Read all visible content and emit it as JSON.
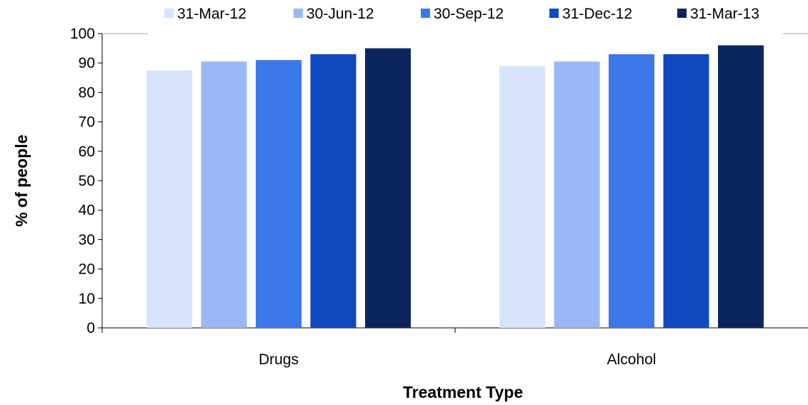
{
  "chart_data": {
    "type": "bar",
    "xlabel": "Treatment Type",
    "ylabel": "% of people",
    "ylim": [
      0,
      100
    ],
    "yticks": [
      "0",
      "10",
      "20",
      "30",
      "40",
      "50",
      "60",
      "70",
      "80",
      "90",
      "100"
    ],
    "categories": [
      "Drugs",
      "Alcohol"
    ],
    "series": [
      {
        "name": "31-Mar-12",
        "color": "#d6e3fb",
        "values": [
          87.5,
          89
        ]
      },
      {
        "name": "30-Jun-12",
        "color": "#9ab8f5",
        "values": [
          90.5,
          90.5
        ]
      },
      {
        "name": "30-Sep-12",
        "color": "#3c78ea",
        "values": [
          91,
          93
        ]
      },
      {
        "name": "31-Dec-12",
        "color": "#1048c0",
        "values": [
          93,
          93
        ]
      },
      {
        "name": "31-Mar-13",
        "color": "#0b255e",
        "values": [
          95,
          96
        ]
      }
    ],
    "legend_position": "top",
    "grid": false
  }
}
